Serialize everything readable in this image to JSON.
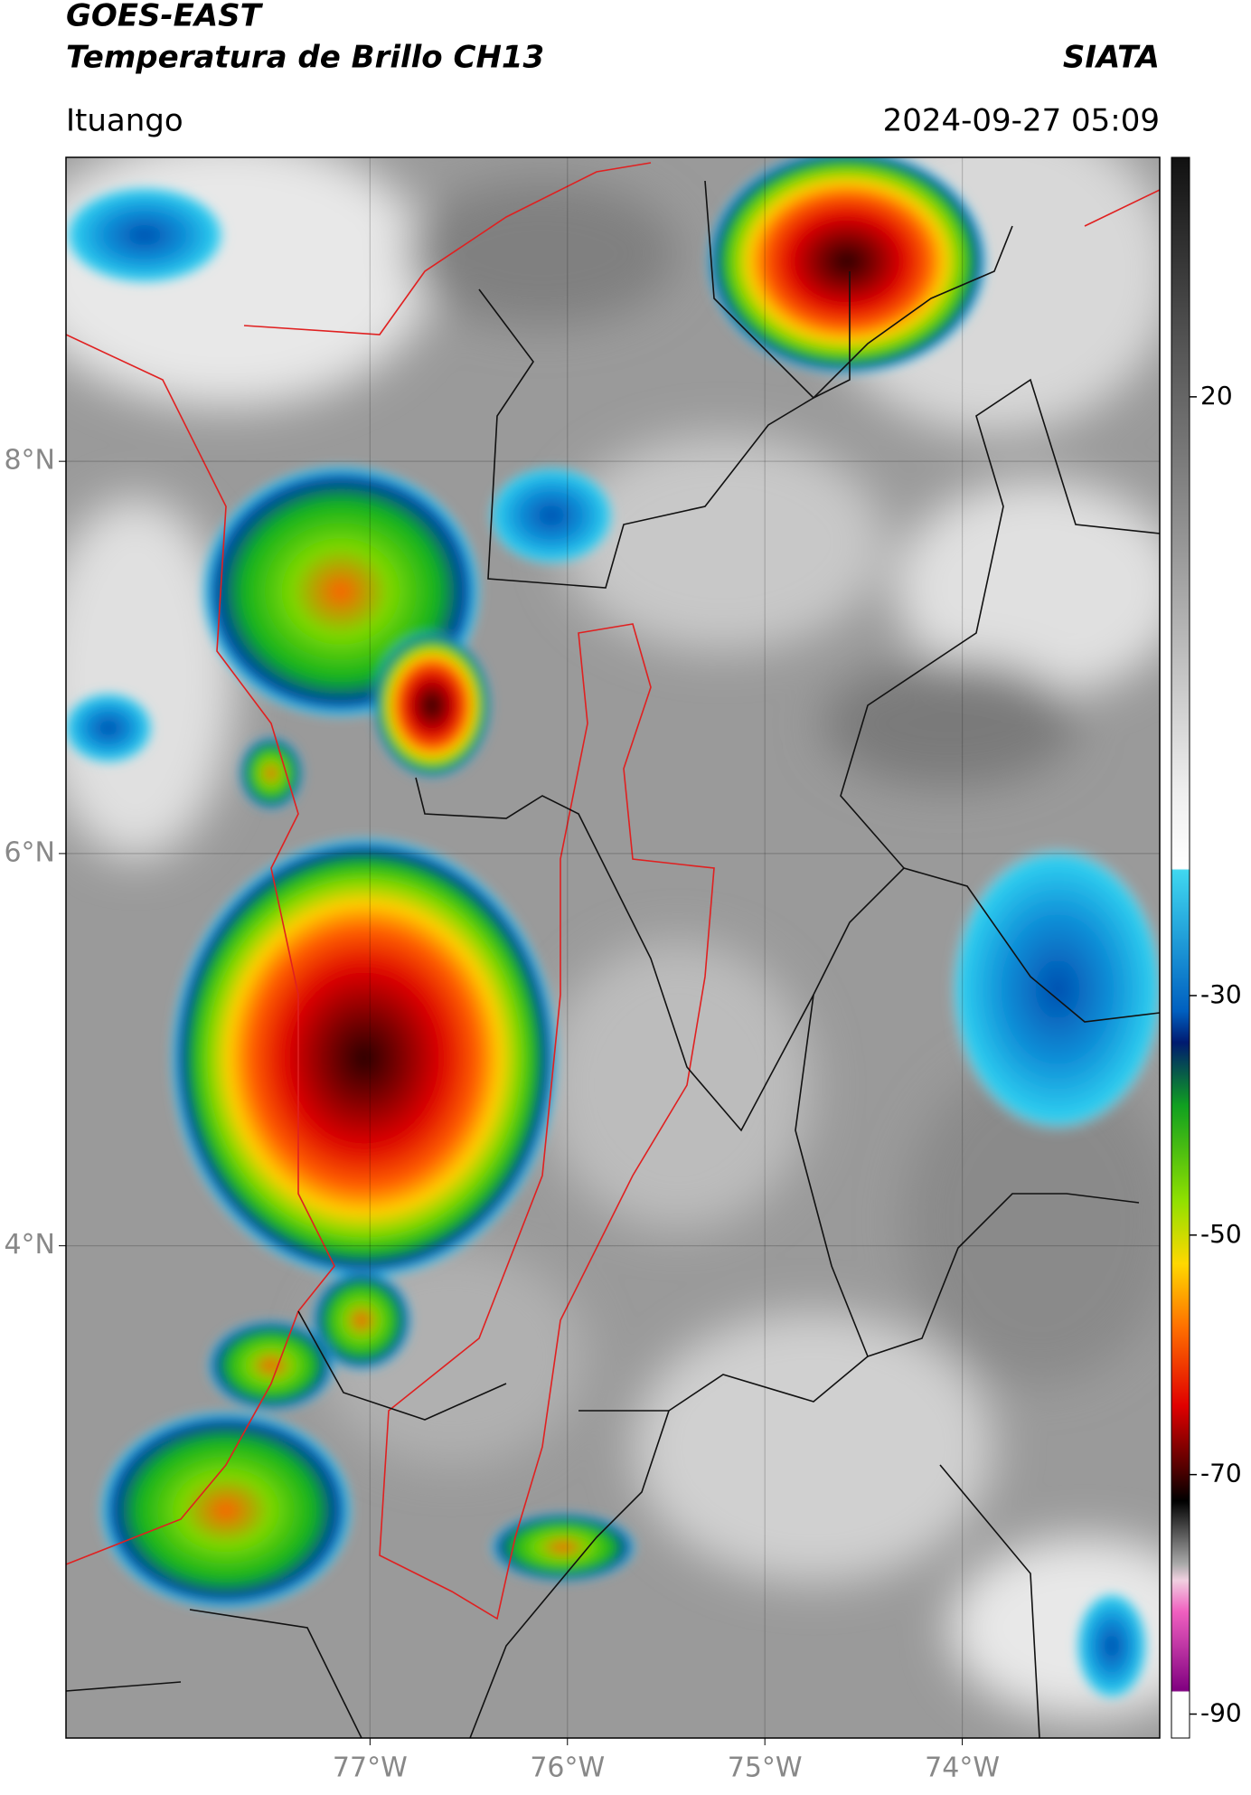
{
  "header": {
    "title_line1": "GOES-EAST",
    "title_line2": "Temperatura de Brillo CH13",
    "org": "SIATA",
    "location": "Ituango",
    "datetime": "2024-09-27 05:09"
  },
  "map": {
    "xlim": [
      -78.54,
      -73.0
    ],
    "ylim": [
      1.49,
      9.55
    ],
    "xticks": [
      {
        "value": -77,
        "label": "77°W"
      },
      {
        "value": -76,
        "label": "76°W"
      },
      {
        "value": -75,
        "label": "75°W"
      },
      {
        "value": -74,
        "label": "74°W"
      }
    ],
    "yticks": [
      {
        "value": 4,
        "label": "4°N"
      },
      {
        "value": 6,
        "label": "6°N"
      },
      {
        "value": 8,
        "label": "8°N"
      }
    ]
  },
  "colorbar": {
    "lim": [
      -92,
      40
    ],
    "ticks": [
      -90,
      -70,
      -50,
      -30,
      20
    ]
  }
}
